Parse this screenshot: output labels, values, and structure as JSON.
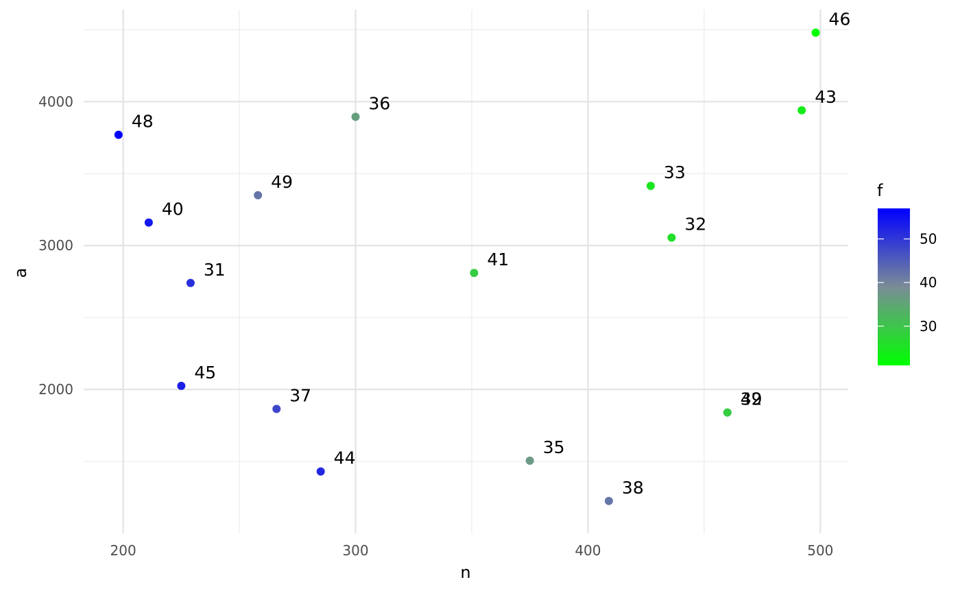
{
  "chart_data": {
    "type": "scatter",
    "xlabel": "n",
    "ylabel": "a",
    "xlim": [
      183,
      512
    ],
    "ylim": [
      1000,
      4640
    ],
    "x_ticks": [
      200,
      300,
      400,
      500
    ],
    "x_tick_labels": [
      "200",
      "300",
      "400",
      "500"
    ],
    "x_minor_ticks": [
      250,
      350,
      450
    ],
    "y_ticks": [
      2000,
      3000,
      4000
    ],
    "y_tick_labels": [
      "2000",
      "3000",
      "4000"
    ],
    "y_minor_ticks": [
      1500,
      2500,
      3500,
      4500
    ],
    "grid": true,
    "color_scale": {
      "title": "f",
      "low_color": "#00ff00",
      "high_color": "#0000ff",
      "range": [
        21,
        57
      ],
      "breaks": [
        30,
        40,
        50
      ],
      "break_labels": [
        "30",
        "40",
        "50"
      ],
      "position": "right"
    },
    "points": [
      {
        "label": "46",
        "n": 498,
        "a": 4480,
        "f": 21
      },
      {
        "label": "43",
        "n": 492,
        "a": 3940,
        "f": 24
      },
      {
        "label": "36",
        "n": 300,
        "a": 3895,
        "f": 36
      },
      {
        "label": "48",
        "n": 198,
        "a": 3770,
        "f": 57
      },
      {
        "label": "33",
        "n": 427,
        "a": 3415,
        "f": 25
      },
      {
        "label": "49",
        "n": 258,
        "a": 3350,
        "f": 42
      },
      {
        "label": "40",
        "n": 211,
        "a": 3160,
        "f": 54
      },
      {
        "label": "32",
        "n": 436,
        "a": 3055,
        "f": 26
      },
      {
        "label": "41",
        "n": 351,
        "a": 2810,
        "f": 29
      },
      {
        "label": "31",
        "n": 229,
        "a": 2740,
        "f": 51
      },
      {
        "label": "45",
        "n": 225,
        "a": 2025,
        "f": 53
      },
      {
        "label": "37",
        "n": 266,
        "a": 1865,
        "f": 48
      },
      {
        "label": "39",
        "n": 460,
        "a": 1840,
        "f": 29
      },
      {
        "label": "42",
        "n": 460,
        "a": 1840,
        "f": 29
      },
      {
        "label": "35",
        "n": 375,
        "a": 1505,
        "f": 37
      },
      {
        "label": "44",
        "n": 285,
        "a": 1430,
        "f": 52
      },
      {
        "label": "38",
        "n": 409,
        "a": 1225,
        "f": 42
      }
    ]
  }
}
